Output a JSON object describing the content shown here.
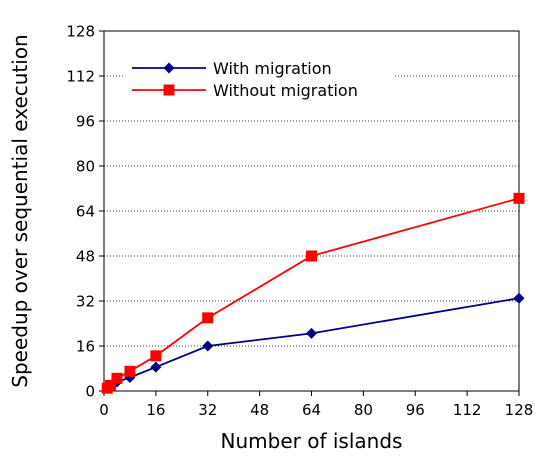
{
  "chart_data": {
    "type": "line",
    "title": "",
    "xlabel": "Number of islands",
    "ylabel": "Speedup over sequential execution",
    "xlim": [
      0,
      128
    ],
    "ylim": [
      0,
      128
    ],
    "xticks": [
      0,
      16,
      32,
      48,
      64,
      80,
      96,
      112,
      128
    ],
    "yticks": [
      0,
      16,
      32,
      48,
      64,
      80,
      96,
      112,
      128
    ],
    "grid": "horizontal dotted",
    "legend_position": "top-left",
    "series": [
      {
        "name": "With migration",
        "color": "#000080",
        "marker": "diamond",
        "x": [
          1,
          2,
          4,
          8,
          16,
          32,
          64,
          128
        ],
        "y": [
          1,
          1.8,
          3.2,
          4.8,
          8.5,
          16,
          20.5,
          33
        ]
      },
      {
        "name": "Without migration",
        "color": "#ff0000",
        "marker": "square",
        "x": [
          1,
          2,
          4,
          8,
          16,
          32,
          64,
          128
        ],
        "y": [
          1,
          2,
          4.5,
          7,
          12.5,
          26,
          48,
          68.5
        ]
      }
    ]
  }
}
